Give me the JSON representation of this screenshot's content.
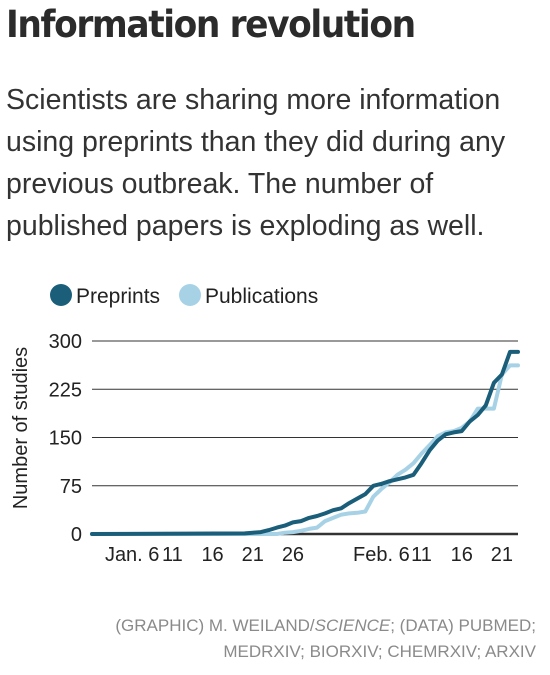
{
  "header": {
    "title": "Information revolution",
    "subtitle": "Scientists are sharing more information using preprints than they did during any previous outbreak. The number of published papers is exploding as well."
  },
  "colors": {
    "preprints": "#1a5e7a",
    "publications": "#a7d2e6",
    "grid": "#333333"
  },
  "footer": {
    "graphic_prefix": "(GRAPHIC) M. WEILAND/",
    "graphic_org": "SCIENCE",
    "data_line1": "; (DATA) PUBMED;",
    "data_line2": "MEDRXIV; BIORXIV; CHEMRXIV; ARXIV"
  },
  "chart_data": {
    "type": "line",
    "ylabel": "Number of studies",
    "ylim": [
      0,
      300
    ],
    "yticks": [
      0,
      75,
      150,
      225,
      300
    ],
    "xlim": [
      1,
      54
    ],
    "xticks": [
      {
        "day": 6,
        "label": "Jan. 6"
      },
      {
        "day": 11,
        "label": "11"
      },
      {
        "day": 16,
        "label": "16"
      },
      {
        "day": 21,
        "label": "21"
      },
      {
        "day": 26,
        "label": "26"
      },
      {
        "day": 37,
        "label": "Feb. 6"
      },
      {
        "day": 42,
        "label": "11"
      },
      {
        "day": 47,
        "label": "16"
      },
      {
        "day": 52,
        "label": "21"
      }
    ],
    "legend": "top-left",
    "series": [
      {
        "name": "Preprints",
        "x": [
          1,
          20,
          21,
          22,
          23,
          24,
          25,
          26,
          27,
          28,
          29,
          30,
          31,
          32,
          33,
          34,
          35,
          36,
          37,
          38,
          39,
          40,
          41,
          42,
          43,
          44,
          45,
          46,
          47,
          48,
          49,
          50,
          51,
          52,
          53,
          54
        ],
        "y": [
          0,
          1,
          2,
          3,
          6,
          10,
          13,
          18,
          20,
          25,
          28,
          32,
          37,
          40,
          48,
          55,
          62,
          75,
          78,
          82,
          85,
          88,
          92,
          110,
          130,
          145,
          155,
          158,
          160,
          175,
          185,
          200,
          235,
          248,
          283,
          283
        ]
      },
      {
        "name": "Publications",
        "x": [
          1,
          24,
          25,
          26,
          27,
          28,
          29,
          30,
          31,
          32,
          33,
          34,
          35,
          36,
          37,
          38,
          39,
          40,
          41,
          42,
          43,
          44,
          45,
          46,
          47,
          48,
          49,
          50,
          51,
          52,
          53,
          54
        ],
        "y": [
          0,
          0,
          2,
          3,
          5,
          8,
          10,
          20,
          25,
          30,
          32,
          33,
          35,
          58,
          70,
          80,
          92,
          100,
          110,
          125,
          138,
          152,
          158,
          160,
          165,
          175,
          195,
          195,
          195,
          248,
          262,
          262
        ]
      }
    ]
  }
}
